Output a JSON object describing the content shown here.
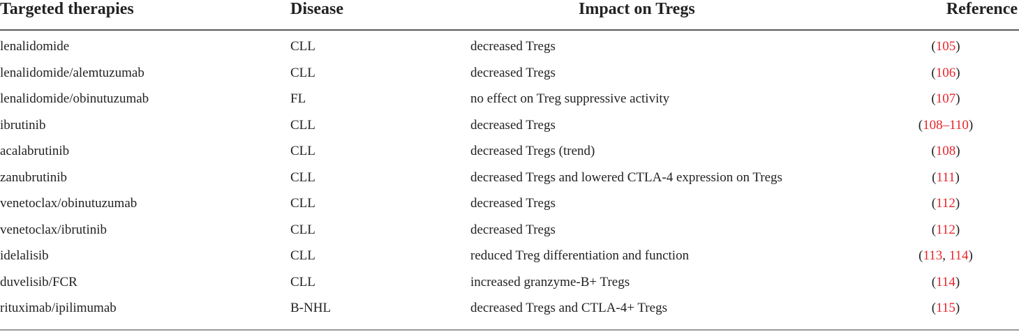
{
  "headers": {
    "therapy": "Targeted therapies",
    "disease": "Disease",
    "impact": "Impact on Tregs",
    "reference": "Reference"
  },
  "rows": [
    {
      "therapy": "lenalidomide",
      "disease": "CLL",
      "impact": "decreased Tregs",
      "ref": [
        "105"
      ],
      "sep": []
    },
    {
      "therapy": "lenalidomide/alemtuzumab",
      "disease": "CLL",
      "impact": "decreased Tregs",
      "ref": [
        "106"
      ],
      "sep": []
    },
    {
      "therapy": "lenalidomide/obinutuzumab",
      "disease": "FL",
      "impact": "no effect on Treg suppressive activity",
      "ref": [
        "107"
      ],
      "sep": []
    },
    {
      "therapy": "ibrutinib",
      "disease": "CLL",
      "impact": "decreased Tregs",
      "ref": [
        "108–110"
      ],
      "sep": []
    },
    {
      "therapy": "acalabrutinib",
      "disease": "CLL",
      "impact": "decreased Tregs (trend)",
      "ref": [
        "108"
      ],
      "sep": []
    },
    {
      "therapy": "zanubrutinib",
      "disease": "CLL",
      "impact": "decreased Tregs and lowered CTLA-4 expression on Tregs",
      "ref": [
        "111"
      ],
      "sep": []
    },
    {
      "therapy": "venetoclax/obinutuzumab",
      "disease": "CLL",
      "impact": "decreased Tregs",
      "ref": [
        "112"
      ],
      "sep": []
    },
    {
      "therapy": "venetoclax/ibrutinib",
      "disease": "CLL",
      "impact": "decreased Tregs",
      "ref": [
        "112"
      ],
      "sep": []
    },
    {
      "therapy": "idelalisib",
      "disease": "CLL",
      "impact": "reduced Treg differentiation and function",
      "ref": [
        "113",
        "114"
      ],
      "sep": [
        ", "
      ]
    },
    {
      "therapy": "duvelisib/FCR",
      "disease": "CLL",
      "impact": "increased granzyme-B+ Tregs",
      "ref": [
        "114"
      ],
      "sep": []
    },
    {
      "therapy": "rituximab/ipilimumab",
      "disease": "B-NHL",
      "impact": "decreased Tregs and CTLA-4+ Tregs",
      "ref": [
        "115"
      ],
      "sep": []
    }
  ],
  "punct": {
    "open": "(",
    "close": ")"
  },
  "colors": {
    "reference_link": "#e8252b",
    "text": "#222222",
    "rule": "#5a5a5a"
  }
}
